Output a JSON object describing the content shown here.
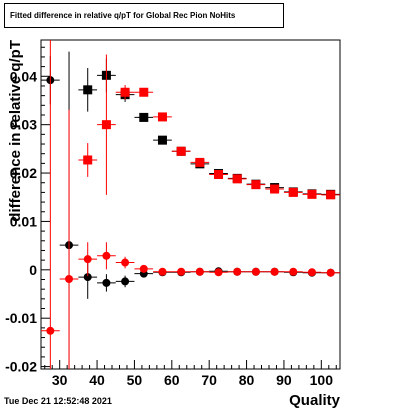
{
  "chart_data": {
    "type": "scatter",
    "title": "Fitted difference in relative q/pT for Global Rec Pion NoHits",
    "xlabel": "Quality",
    "ylabel": "difference in relative q/pT",
    "xlim": [
      25,
      105
    ],
    "ylim": [
      -0.0205,
      0.0475
    ],
    "xticks": [
      {
        "v": 30,
        "label": "30"
      },
      {
        "v": 40,
        "label": "40"
      },
      {
        "v": 50,
        "label": "50"
      },
      {
        "v": 60,
        "label": "60"
      },
      {
        "v": 70,
        "label": "70"
      },
      {
        "v": 80,
        "label": "80"
      },
      {
        "v": 90,
        "label": "90"
      },
      {
        "v": 100,
        "label": "100"
      }
    ],
    "yticks": [
      {
        "v": -0.02,
        "label": "-0.02"
      },
      {
        "v": -0.01,
        "label": "-0.01"
      },
      {
        "v": 0,
        "label": "0"
      },
      {
        "v": 0.01,
        "label": "0.01"
      },
      {
        "v": 0.02,
        "label": "0.02"
      },
      {
        "v": 0.03,
        "label": "0.03"
      },
      {
        "v": 0.04,
        "label": "0.04"
      }
    ],
    "x_error_half_width": 2.5,
    "grid": false,
    "series": [
      {
        "marker": "circle",
        "color": "#000000",
        "x": [
          27.5,
          32.5,
          37.5,
          42.5,
          47.5,
          52.5,
          57.5,
          62.5,
          67.5,
          72.5,
          77.5,
          82.5,
          87.5,
          92.5,
          97.5,
          102.5
        ],
        "y": [
          0.0392,
          0.0051,
          -0.0015,
          -0.0027,
          -0.0024,
          -0.0008,
          -0.0005,
          -0.0005,
          -0.0004,
          -0.0003,
          -0.0004,
          -0.0004,
          -0.0004,
          -0.0005,
          -0.0006,
          -0.0006
        ],
        "yerr": [
          0.005,
          0.04,
          0.0045,
          0.0018,
          0.0012,
          0.0006,
          0.0004,
          0.0003,
          0.0003,
          0.0003,
          0.0003,
          0.0003,
          0.0003,
          0.0003,
          0.0003,
          0.0003
        ]
      },
      {
        "marker": "circle",
        "color": "#ff0000",
        "x": [
          27.5,
          32.5,
          37.5,
          42.5,
          47.5,
          52.5,
          57.5,
          62.5,
          67.5,
          72.5,
          77.5,
          82.5,
          87.5,
          92.5,
          97.5,
          102.5
        ],
        "y": [
          -0.0126,
          -0.0019,
          0.0022,
          0.0029,
          0.0015,
          0.0002,
          -0.0004,
          -0.0004,
          -0.0004,
          -0.0005,
          -0.0004,
          -0.0004,
          -0.0004,
          -0.0004,
          -0.0005,
          -0.0006
        ],
        "yerr": [
          0.065,
          0.035,
          0.0035,
          0.0028,
          0.0012,
          0.0006,
          0.0004,
          0.0003,
          0.0003,
          0.0003,
          0.0003,
          0.0003,
          0.0003,
          0.0003,
          0.0003,
          0.0003
        ]
      },
      {
        "marker": "square",
        "color": "#000000",
        "x": [
          37.5,
          42.5,
          47.5,
          52.5,
          57.5,
          62.5,
          67.5,
          72.5,
          77.5,
          82.5,
          87.5,
          92.5,
          97.5,
          102.5
        ],
        "y": [
          0.0372,
          0.0402,
          0.0362,
          0.0315,
          0.0268,
          0.0245,
          0.0219,
          0.0199,
          0.0189,
          0.0177,
          0.017,
          0.0161,
          0.0157,
          0.0156
        ],
        "yerr": [
          0.0045,
          0.0035,
          0.0015,
          0.0008,
          0.0005,
          0.0004,
          0.0004,
          0.0003,
          0.0003,
          0.0003,
          0.0003,
          0.0003,
          0.0003,
          0.0003
        ]
      },
      {
        "marker": "square",
        "color": "#ff0000",
        "x": [
          37.5,
          42.5,
          47.5,
          52.5,
          57.5,
          62.5,
          67.5,
          72.5,
          77.5,
          82.5,
          87.5,
          92.5,
          97.5,
          102.5
        ],
        "y": [
          0.0227,
          0.03,
          0.0367,
          0.0367,
          0.0316,
          0.0245,
          0.0222,
          0.0197,
          0.0188,
          0.0176,
          0.0167,
          0.016,
          0.0156,
          0.0155
        ],
        "yerr": [
          0.0035,
          0.0145,
          0.0015,
          0.0008,
          0.0005,
          0.0004,
          0.0004,
          0.0003,
          0.0003,
          0.0003,
          0.0003,
          0.0003,
          0.0003,
          0.0003
        ]
      }
    ]
  },
  "timestamp": "Tue Dec 21 12:52:48 2021"
}
